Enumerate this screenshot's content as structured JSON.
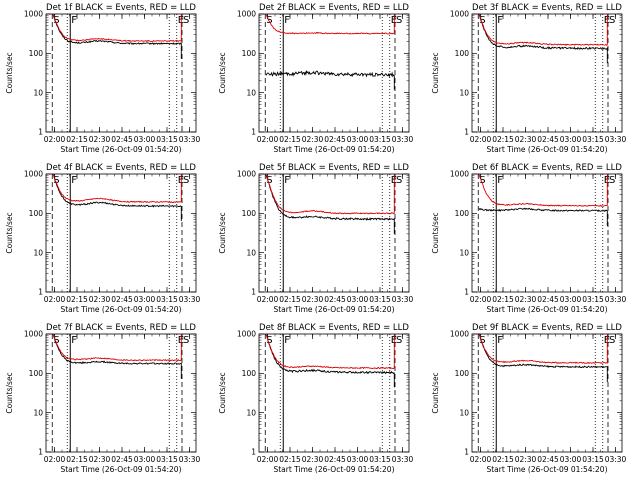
{
  "chart_data": [
    {
      "type": "line",
      "title": "Det 1f BLACK = Events, RED = LLD",
      "xlabel": "Start Time (26-Oct-09 01:54:20)",
      "ylabel": "Counts/sec",
      "ylog": true,
      "ylim": [
        1,
        1000
      ],
      "xlim": [
        "01:54:20",
        "03:34:20"
      ],
      "x_ticks": [
        "02:00",
        "02:15",
        "02:30",
        "02:45",
        "03:00",
        "03:15",
        "03:30"
      ],
      "y_ticks": [
        "1",
        "10",
        "100",
        "1000"
      ],
      "markers": [
        {
          "label": "S",
          "time": "01:58:30",
          "style": "dashed"
        },
        {
          "label": "",
          "time": "02:08:30",
          "style": "dotted"
        },
        {
          "label": "F",
          "time": "02:10:30",
          "style": "solid"
        },
        {
          "label": "",
          "time": "03:16:30",
          "style": "dotted"
        },
        {
          "label": "E",
          "time": "03:21:30",
          "style": "dotted"
        },
        {
          "label": "S",
          "time": "03:25:00",
          "style": "dashed"
        }
      ],
      "series": [
        {
          "name": "Events",
          "color": "#000000",
          "baseline": 180,
          "peak": 1000,
          "bump": 1.15,
          "trend": 0.98,
          "noise": 0.04
        },
        {
          "name": "LLD",
          "color": "#e00000",
          "baseline": 210,
          "peak": 1000,
          "bump": 1.12,
          "trend": 0.98,
          "noise": 0.03
        }
      ]
    },
    {
      "type": "line",
      "title": "Det 2f BLACK = Events, RED = LLD",
      "xlabel": "Start Time (26-Oct-09 01:54:20)",
      "ylabel": "Counts/sec",
      "ylog": true,
      "ylim": [
        1,
        1000
      ],
      "xlim": [
        "01:54:20",
        "03:34:20"
      ],
      "x_ticks": [
        "02:00",
        "02:15",
        "02:30",
        "02:45",
        "03:00",
        "03:15",
        "03:30"
      ],
      "y_ticks": [
        "1",
        "10",
        "100",
        "1000"
      ],
      "markers": [
        {
          "label": "S",
          "time": "01:58:30",
          "style": "dashed"
        },
        {
          "label": "",
          "time": "02:08:30",
          "style": "dotted"
        },
        {
          "label": "F",
          "time": "02:10:30",
          "style": "solid"
        },
        {
          "label": "",
          "time": "03:16:30",
          "style": "dotted"
        },
        {
          "label": "E",
          "time": "03:21:30",
          "style": "dotted"
        },
        {
          "label": "S",
          "time": "03:25:00",
          "style": "dashed"
        }
      ],
      "series": [
        {
          "name": "Events",
          "color": "#000000",
          "baseline": 30,
          "peak": 30,
          "bump": 1.1,
          "trend": 0.95,
          "noise": 0.1
        },
        {
          "name": "LLD",
          "color": "#e00000",
          "baseline": 320,
          "peak": 1000,
          "bump": 1.03,
          "trend": 1.0,
          "noise": 0.03
        }
      ]
    },
    {
      "type": "line",
      "title": "Det 3f BLACK = Events, RED = LLD",
      "xlabel": "Start Time (26-Oct-09 01:54:20)",
      "ylabel": "Counts/sec",
      "ylog": true,
      "ylim": [
        1,
        1000
      ],
      "xlim": [
        "01:54:20",
        "03:34:20"
      ],
      "x_ticks": [
        "02:00",
        "02:15",
        "02:30",
        "02:45",
        "03:00",
        "03:15",
        "03:30"
      ],
      "y_ticks": [
        "1",
        "10",
        "100",
        "1000"
      ],
      "markers": [
        {
          "label": "S",
          "time": "01:58:30",
          "style": "dashed"
        },
        {
          "label": "",
          "time": "02:08:30",
          "style": "dotted"
        },
        {
          "label": "F",
          "time": "02:10:30",
          "style": "solid"
        },
        {
          "label": "",
          "time": "03:16:30",
          "style": "dotted"
        },
        {
          "label": "E",
          "time": "03:21:30",
          "style": "dotted"
        },
        {
          "label": "S",
          "time": "03:25:00",
          "style": "dashed"
        }
      ],
      "series": [
        {
          "name": "Events",
          "color": "#000000",
          "baseline": 140,
          "peak": 1000,
          "bump": 1.12,
          "trend": 0.95,
          "noise": 0.05
        },
        {
          "name": "LLD",
          "color": "#e00000",
          "baseline": 170,
          "peak": 1000,
          "bump": 1.12,
          "trend": 0.97,
          "noise": 0.03
        }
      ]
    },
    {
      "type": "line",
      "title": "Det 4f BLACK = Events, RED = LLD",
      "xlabel": "Start Time (26-Oct-09 01:54:20)",
      "ylabel": "Counts/sec",
      "ylog": true,
      "ylim": [
        1,
        1000
      ],
      "xlim": [
        "01:54:20",
        "03:34:20"
      ],
      "x_ticks": [
        "02:00",
        "02:15",
        "02:30",
        "02:45",
        "03:00",
        "03:15",
        "03:30"
      ],
      "y_ticks": [
        "1",
        "10",
        "100",
        "1000"
      ],
      "markers": [
        {
          "label": "S",
          "time": "01:58:30",
          "style": "dashed"
        },
        {
          "label": "",
          "time": "02:08:30",
          "style": "dotted"
        },
        {
          "label": "F",
          "time": "02:10:30",
          "style": "solid"
        },
        {
          "label": "",
          "time": "03:16:30",
          "style": "dotted"
        },
        {
          "label": "E",
          "time": "03:21:30",
          "style": "dotted"
        },
        {
          "label": "S",
          "time": "03:25:00",
          "style": "dashed"
        }
      ],
      "series": [
        {
          "name": "Events",
          "color": "#000000",
          "baseline": 160,
          "peak": 1000,
          "bump": 1.2,
          "trend": 0.95,
          "noise": 0.04
        },
        {
          "name": "LLD",
          "color": "#e00000",
          "baseline": 200,
          "peak": 1000,
          "bump": 1.2,
          "trend": 0.97,
          "noise": 0.03
        }
      ]
    },
    {
      "type": "line",
      "title": "Det 5f BLACK = Events, RED = LLD",
      "xlabel": "Start Time (26-Oct-09 01:54:20)",
      "ylabel": "Counts/sec",
      "ylog": true,
      "ylim": [
        1,
        1000
      ],
      "xlim": [
        "01:54:20",
        "03:34:20"
      ],
      "x_ticks": [
        "02:00",
        "02:15",
        "02:30",
        "02:45",
        "03:00",
        "03:15",
        "03:30"
      ],
      "y_ticks": [
        "1",
        "10",
        "100",
        "1000"
      ],
      "markers": [
        {
          "label": "S",
          "time": "01:58:30",
          "style": "dashed"
        },
        {
          "label": "",
          "time": "02:08:30",
          "style": "dotted"
        },
        {
          "label": "F",
          "time": "02:10:30",
          "style": "solid"
        },
        {
          "label": "",
          "time": "03:16:30",
          "style": "dotted"
        },
        {
          "label": "E",
          "time": "03:21:30",
          "style": "dotted"
        },
        {
          "label": "S",
          "time": "03:25:00",
          "style": "dashed"
        }
      ],
      "series": [
        {
          "name": "Events",
          "color": "#000000",
          "baseline": 75,
          "peak": 1000,
          "bump": 1.12,
          "trend": 0.95,
          "noise": 0.05
        },
        {
          "name": "LLD",
          "color": "#e00000",
          "baseline": 100,
          "peak": 1000,
          "bump": 1.15,
          "trend": 1.0,
          "noise": 0.03
        }
      ]
    },
    {
      "type": "line",
      "title": "Det 6f BLACK = Events, RED = LLD",
      "xlabel": "Start Time (26-Oct-09 01:54:20)",
      "ylabel": "Counts/sec",
      "ylog": true,
      "ylim": [
        1,
        1000
      ],
      "xlim": [
        "01:54:20",
        "03:34:20"
      ],
      "x_ticks": [
        "02:00",
        "02:15",
        "02:30",
        "02:45",
        "03:00",
        "03:15",
        "03:30"
      ],
      "y_ticks": [
        "1",
        "10",
        "100",
        "1000"
      ],
      "markers": [
        {
          "label": "S",
          "time": "01:58:30",
          "style": "dashed"
        },
        {
          "label": "",
          "time": "02:08:30",
          "style": "dotted"
        },
        {
          "label": "F",
          "time": "02:10:30",
          "style": "solid"
        },
        {
          "label": "",
          "time": "03:16:30",
          "style": "dotted"
        },
        {
          "label": "E",
          "time": "03:21:30",
          "style": "dotted"
        },
        {
          "label": "S",
          "time": "03:25:00",
          "style": "dashed"
        }
      ],
      "series": [
        {
          "name": "Events",
          "color": "#000000",
          "baseline": 120,
          "peak": 130,
          "bump": 1.1,
          "trend": 0.97,
          "noise": 0.04
        },
        {
          "name": "LLD",
          "color": "#e00000",
          "baseline": 160,
          "peak": 1000,
          "bump": 1.1,
          "trend": 0.97,
          "noise": 0.03
        }
      ]
    },
    {
      "type": "line",
      "title": "Det 7f BLACK = Events, RED = LLD",
      "xlabel": "Start Time (26-Oct-09 01:54:20)",
      "ylabel": "Counts/sec",
      "ylog": true,
      "ylim": [
        1,
        1000
      ],
      "xlim": [
        "01:54:20",
        "03:34:20"
      ],
      "x_ticks": [
        "02:00",
        "02:15",
        "02:30",
        "02:45",
        "03:00",
        "03:15",
        "03:30"
      ],
      "y_ticks": [
        "1",
        "10",
        "100",
        "1000"
      ],
      "markers": [
        {
          "label": "S",
          "time": "01:58:30",
          "style": "dashed"
        },
        {
          "label": "",
          "time": "02:08:30",
          "style": "dotted"
        },
        {
          "label": "F",
          "time": "02:10:30",
          "style": "solid"
        },
        {
          "label": "",
          "time": "03:16:30",
          "style": "dotted"
        },
        {
          "label": "E",
          "time": "03:21:30",
          "style": "dotted"
        },
        {
          "label": "S",
          "time": "03:25:00",
          "style": "dashed"
        }
      ],
      "series": [
        {
          "name": "Events",
          "color": "#000000",
          "baseline": 180,
          "peak": 1000,
          "bump": 1.1,
          "trend": 0.98,
          "noise": 0.04
        },
        {
          "name": "LLD",
          "color": "#e00000",
          "baseline": 220,
          "peak": 1000,
          "bump": 1.12,
          "trend": 0.98,
          "noise": 0.03
        }
      ]
    },
    {
      "type": "line",
      "title": "Det 8f BLACK = Events, RED = LLD",
      "xlabel": "Start Time (26-Oct-09 01:54:20)",
      "ylabel": "Counts/sec",
      "ylog": true,
      "ylim": [
        1,
        1000
      ],
      "xlim": [
        "01:54:20",
        "03:34:20"
      ],
      "x_ticks": [
        "02:00",
        "02:15",
        "02:30",
        "02:45",
        "03:00",
        "03:15",
        "03:30"
      ],
      "y_ticks": [
        "1",
        "10",
        "100",
        "1000"
      ],
      "markers": [
        {
          "label": "S",
          "time": "01:58:30",
          "style": "dashed"
        },
        {
          "label": "",
          "time": "02:08:30",
          "style": "dotted"
        },
        {
          "label": "F",
          "time": "02:10:30",
          "style": "solid"
        },
        {
          "label": "",
          "time": "03:16:30",
          "style": "dotted"
        },
        {
          "label": "E",
          "time": "03:21:30",
          "style": "dotted"
        },
        {
          "label": "S",
          "time": "03:25:00",
          "style": "dashed"
        }
      ],
      "series": [
        {
          "name": "Events",
          "color": "#000000",
          "baseline": 110,
          "peak": 1000,
          "bump": 1.1,
          "trend": 0.95,
          "noise": 0.05
        },
        {
          "name": "LLD",
          "color": "#e00000",
          "baseline": 140,
          "peak": 1000,
          "bump": 1.1,
          "trend": 0.97,
          "noise": 0.03
        }
      ]
    },
    {
      "type": "line",
      "title": "Det 9f BLACK = Events, RED = LLD",
      "xlabel": "Start Time (26-Oct-09 01:54:20)",
      "ylabel": "Counts/sec",
      "ylog": true,
      "ylim": [
        1,
        1000
      ],
      "xlim": [
        "01:54:20",
        "03:34:20"
      ],
      "x_ticks": [
        "02:00",
        "02:15",
        "02:30",
        "02:45",
        "03:00",
        "03:15",
        "03:30"
      ],
      "y_ticks": [
        "1",
        "10",
        "100",
        "1000"
      ],
      "markers": [
        {
          "label": "S",
          "time": "01:58:30",
          "style": "dashed"
        },
        {
          "label": "",
          "time": "02:08:30",
          "style": "dotted"
        },
        {
          "label": "F",
          "time": "02:10:30",
          "style": "solid"
        },
        {
          "label": "",
          "time": "03:16:30",
          "style": "dotted"
        },
        {
          "label": "E",
          "time": "03:21:30",
          "style": "dotted"
        },
        {
          "label": "S",
          "time": "03:25:00",
          "style": "dashed"
        }
      ],
      "series": [
        {
          "name": "Events",
          "color": "#000000",
          "baseline": 150,
          "peak": 1000,
          "bump": 1.12,
          "trend": 0.97,
          "noise": 0.04
        },
        {
          "name": "LLD",
          "color": "#e00000",
          "baseline": 190,
          "peak": 1000,
          "bump": 1.12,
          "trend": 0.97,
          "noise": 0.03
        }
      ]
    }
  ]
}
